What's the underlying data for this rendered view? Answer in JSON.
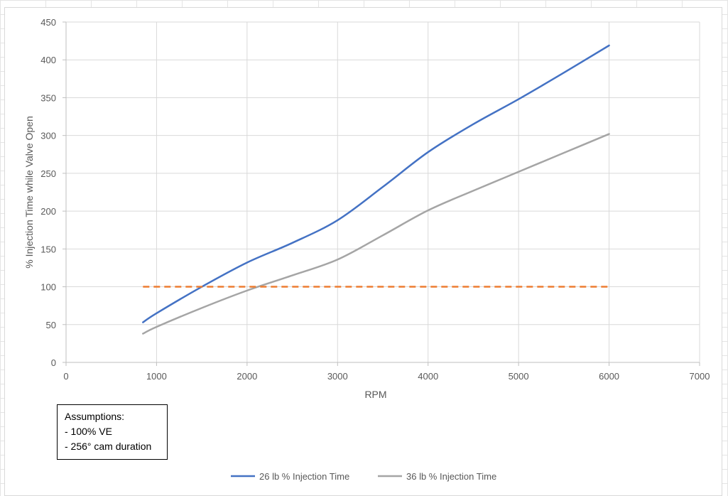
{
  "chart_data": {
    "type": "line",
    "xlabel": "RPM",
    "ylabel": "% Injection Time while Valve Open",
    "xlim": [
      0,
      7000
    ],
    "ylim": [
      0,
      450
    ],
    "xticks": [
      0,
      1000,
      2000,
      3000,
      4000,
      5000,
      6000,
      7000
    ],
    "yticks": [
      0,
      50,
      100,
      150,
      200,
      250,
      300,
      350,
      400,
      450
    ],
    "grid": true,
    "legend_position": "bottom",
    "series": [
      {
        "name": "26 lb % Injection Time",
        "color": "#4472c4",
        "style": "solid",
        "x": [
          850,
          1000,
          1500,
          2000,
          2500,
          3000,
          3500,
          4000,
          4500,
          5000,
          5500,
          6000
        ],
        "y": [
          53,
          65,
          100,
          132,
          158,
          188,
          232,
          278,
          315,
          348,
          383,
          419
        ]
      },
      {
        "name": "36 lb % Injection Time",
        "color": "#a5a5a5",
        "style": "solid",
        "x": [
          850,
          1000,
          1500,
          2000,
          2500,
          3000,
          3500,
          4000,
          4500,
          5000,
          5500,
          6000
        ],
        "y": [
          38,
          47,
          72,
          95,
          115,
          136,
          168,
          201,
          227,
          252,
          277,
          302
        ]
      },
      {
        "color": "#ed7d31",
        "style": "dashed",
        "x": [
          850,
          6000
        ],
        "y": [
          100,
          100
        ]
      }
    ]
  },
  "assumptions": {
    "title": "Assumptions:",
    "line1": "- 100% VE",
    "line2": "- 256° cam duration"
  }
}
